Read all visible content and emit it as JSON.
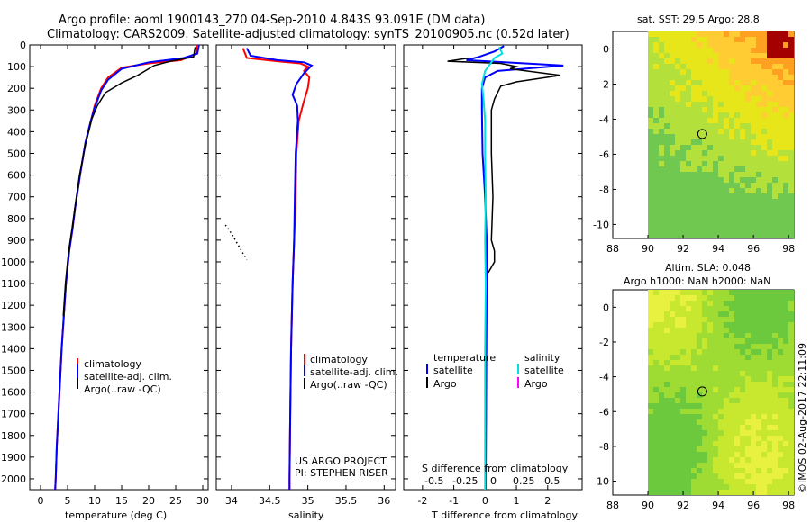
{
  "header": {
    "line1": "Argo profile: aoml 1900143_270 04-Sep-2010 4.843S 93.091E (DM data)",
    "line2": "Climatology: CARS2009. Satellite-adjusted climatology: synTS_20100905.nc (0.52d later)"
  },
  "chart_data": [
    {
      "type": "line",
      "id": "temperature",
      "xlabel": "temperature (deg C)",
      "ylabel": "",
      "xlim": [
        -2,
        31
      ],
      "ylim": [
        2050,
        0
      ],
      "x_ticks": [
        0,
        5,
        10,
        15,
        20,
        25,
        30
      ],
      "y_ticks": [
        0,
        100,
        200,
        300,
        400,
        500,
        600,
        700,
        800,
        900,
        1000,
        1100,
        1200,
        1300,
        1400,
        1500,
        1600,
        1700,
        1800,
        1900,
        2000
      ],
      "legend": [
        "climatology",
        "satellite-adj. clim.",
        "Argo(..raw -QC)"
      ],
      "colors": {
        "climatology": "#ff0000",
        "satellite": "#0000ff",
        "argo": "#000000"
      },
      "series": [
        {
          "name": "climatology",
          "points": [
            [
              28.9,
              0
            ],
            [
              28.8,
              40
            ],
            [
              26,
              70
            ],
            [
              20,
              85
            ],
            [
              15,
              105
            ],
            [
              12.5,
              150
            ],
            [
              11.2,
              200
            ],
            [
              10,
              280
            ],
            [
              9.3,
              350
            ],
            [
              8.3,
              450
            ],
            [
              7.3,
              600
            ],
            [
              6.4,
              750
            ],
            [
              5.9,
              850
            ],
            [
              5.3,
              950
            ],
            [
              4.7,
              1100
            ],
            [
              4.3,
              1250
            ],
            [
              3.9,
              1400
            ],
            [
              3.6,
              1550
            ],
            [
              3.3,
              1700
            ],
            [
              3.0,
              1850
            ],
            [
              2.8,
              2000
            ],
            [
              2.7,
              2050
            ]
          ]
        },
        {
          "name": "satellite-adj. clim.",
          "points": [
            [
              29.3,
              0
            ],
            [
              29.0,
              40
            ],
            [
              26.5,
              60
            ],
            [
              20,
              80
            ],
            [
              15,
              110
            ],
            [
              12.5,
              160
            ],
            [
              11.2,
              210
            ],
            [
              10,
              290
            ],
            [
              9.3,
              350
            ],
            [
              8.3,
              450
            ],
            [
              7.3,
              600
            ],
            [
              6.4,
              750
            ],
            [
              5.9,
              850
            ],
            [
              5.3,
              950
            ],
            [
              4.7,
              1100
            ],
            [
              4.3,
              1250
            ],
            [
              3.9,
              1400
            ],
            [
              3.6,
              1550
            ],
            [
              3.3,
              1700
            ],
            [
              3.0,
              1850
            ],
            [
              2.8,
              2000
            ],
            [
              2.7,
              2050
            ]
          ]
        },
        {
          "name": "Argo(..raw -QC)",
          "points": [
            [
              28.6,
              10
            ],
            [
              28.3,
              55
            ],
            [
              24,
              75
            ],
            [
              21,
              95
            ],
            [
              18,
              140
            ],
            [
              15,
              175
            ],
            [
              12,
              220
            ],
            [
              10.5,
              280
            ],
            [
              9.5,
              340
            ],
            [
              8.4,
              450
            ],
            [
              7.2,
              600
            ],
            [
              6.3,
              760
            ],
            [
              5.8,
              850
            ],
            [
              5.2,
              950
            ],
            [
              4.6,
              1100
            ],
            [
              4.2,
              1250
            ]
          ]
        }
      ]
    },
    {
      "type": "line",
      "id": "salinity",
      "xlabel": "salinity",
      "ylabel": "",
      "xlim": [
        33.8,
        36.15
      ],
      "ylim": [
        2050,
        0
      ],
      "x_ticks": [
        34,
        34.5,
        35,
        35.5,
        36
      ],
      "legend": [
        "climatology",
        "satellite-adj. clim.",
        "Argo(..raw -QC)"
      ],
      "annotations": [
        "US ARGO PROJECT",
        "PI: STEPHEN RISER"
      ],
      "series": [
        {
          "name": "climatology",
          "points": [
            [
              34.15,
              15
            ],
            [
              34.2,
              60
            ],
            [
              34.6,
              75
            ],
            [
              34.9,
              85
            ],
            [
              35.0,
              100
            ],
            [
              34.95,
              120
            ],
            [
              35.02,
              150
            ],
            [
              35.0,
              200
            ],
            [
              34.94,
              270
            ],
            [
              34.88,
              350
            ],
            [
              34.85,
              500
            ],
            [
              34.84,
              700
            ],
            [
              34.82,
              900
            ],
            [
              34.8,
              1100
            ],
            [
              34.78,
              1400
            ],
            [
              34.77,
              1700
            ],
            [
              34.76,
              2000
            ],
            [
              34.76,
              2050
            ]
          ]
        },
        {
          "name": "satellite-adj. clim.",
          "points": [
            [
              34.2,
              15
            ],
            [
              34.25,
              50
            ],
            [
              34.6,
              70
            ],
            [
              34.95,
              80
            ],
            [
              35.05,
              95
            ],
            [
              34.95,
              130
            ],
            [
              34.85,
              180
            ],
            [
              34.8,
              230
            ],
            [
              34.86,
              280
            ],
            [
              34.87,
              350
            ],
            [
              34.84,
              500
            ],
            [
              34.83,
              700
            ],
            [
              34.82,
              900
            ],
            [
              34.8,
              1100
            ],
            [
              34.78,
              1400
            ],
            [
              34.77,
              1700
            ],
            [
              34.76,
              2000
            ],
            [
              34.76,
              2050
            ]
          ]
        },
        {
          "name": "Argo(..raw -QC)",
          "points": [
            [
              33.92,
              830
            ],
            [
              34.0,
              870
            ],
            [
              34.05,
              900
            ],
            [
              34.1,
              930
            ],
            [
              34.15,
              960
            ],
            [
              34.2,
              990
            ]
          ]
        }
      ]
    },
    {
      "type": "line",
      "id": "difference",
      "xlabel": "T difference from climatology",
      "xlabel_top": "S difference from climatology",
      "xlim": [
        -2.6,
        3.1
      ],
      "ylim": [
        2050,
        0
      ],
      "x_ticks": [
        -2,
        -1,
        0,
        1,
        2
      ],
      "s_ticks": [
        "-0.5",
        "-0.25",
        "0",
        "0.25",
        "0.5"
      ],
      "legend_temperature": {
        "title": "temperature",
        "entries": [
          "satellite",
          "Argo"
        ]
      },
      "legend_salinity": {
        "title": "salinity",
        "entries": [
          "satellite",
          "Argo"
        ]
      },
      "series": [
        {
          "name": "T satellite",
          "points": [
            [
              0.6,
              5
            ],
            [
              0.3,
              30
            ],
            [
              -0.2,
              55
            ],
            [
              -0.6,
              70
            ],
            [
              2.5,
              95
            ],
            [
              0.4,
              120
            ],
            [
              0.0,
              150
            ],
            [
              -0.1,
              200
            ],
            [
              -0.1,
              300
            ],
            [
              -0.08,
              500
            ],
            [
              0.0,
              700
            ],
            [
              0.05,
              900
            ],
            [
              0.05,
              1100
            ],
            [
              0.04,
              1400
            ],
            [
              0.03,
              1700
            ],
            [
              0.02,
              2000
            ],
            [
              0.02,
              2050
            ]
          ]
        },
        {
          "name": "T Argo",
          "points": [
            [
              -0.5,
              60
            ],
            [
              -1.2,
              75
            ],
            [
              0.5,
              85
            ],
            [
              1.0,
              100
            ],
            [
              0.8,
              110
            ],
            [
              2.4,
              140
            ],
            [
              1.0,
              170
            ],
            [
              0.5,
              190
            ],
            [
              0.3,
              250
            ],
            [
              0.2,
              300
            ],
            [
              0.2,
              500
            ],
            [
              0.25,
              700
            ],
            [
              0.2,
              900
            ],
            [
              0.3,
              950
            ],
            [
              0.3,
              1000
            ],
            [
              0.1,
              1050
            ]
          ]
        },
        {
          "name": "S satellite",
          "points": [
            [
              0.45,
              10
            ],
            [
              0.55,
              40
            ],
            [
              0.3,
              60
            ],
            [
              0.0,
              120
            ],
            [
              -0.1,
              180
            ],
            [
              -0.05,
              250
            ],
            [
              0.0,
              350
            ],
            [
              0.0,
              500
            ],
            [
              0.02,
              700
            ],
            [
              0.0,
              900
            ],
            [
              0.02,
              1100
            ],
            [
              0.0,
              1400
            ],
            [
              0.0,
              1700
            ],
            [
              0.0,
              2050
            ]
          ]
        }
      ]
    },
    {
      "type": "heatmap",
      "id": "sst-map",
      "title": "sat. SST: 29.5  Argo: 28.8",
      "xlim": [
        88,
        98.3
      ],
      "ylim": [
        -10.8,
        1.0
      ],
      "x_ticks": [
        88,
        90,
        92,
        94,
        96,
        98
      ],
      "y_ticks": [
        0,
        -2,
        -4,
        -6,
        -8,
        -10
      ],
      "profile_location": [
        93.091,
        -4.843
      ]
    },
    {
      "type": "heatmap",
      "id": "sla-map",
      "title": "Altim. SLA: 0.048",
      "subtitle": "Argo h1000: NaN h2000: NaN",
      "xlim": [
        88,
        98.3
      ],
      "ylim": [
        -10.8,
        1.0
      ],
      "x_ticks": [
        88,
        90,
        92,
        94,
        96,
        98
      ],
      "y_ticks": [
        0,
        -2,
        -4,
        -6,
        -8,
        -10
      ],
      "profile_location": [
        93.091,
        -4.843
      ]
    }
  ],
  "side_stamp": "©IMOS 02-Aug-2017 22:11:09"
}
